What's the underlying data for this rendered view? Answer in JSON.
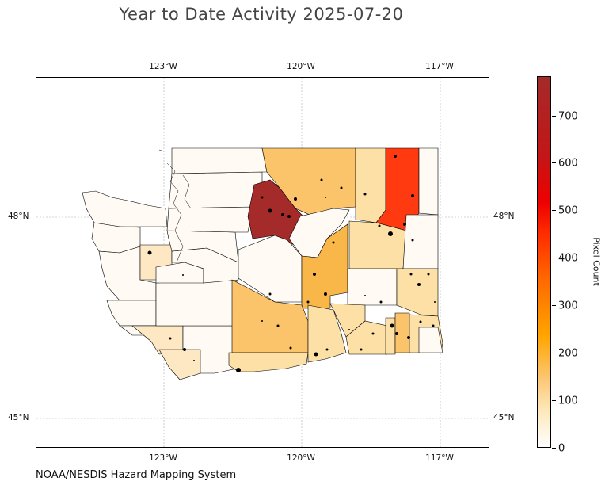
{
  "title": "Year to Date Activity 2025-07-20",
  "credit": "NOAA/NESDIS Hazard Mapping System",
  "map": {
    "lon_ticks": [
      "123°W",
      "120°W",
      "117°W"
    ],
    "lat_ticks": [
      "48°N",
      "45°N"
    ],
    "colors": {
      "lowest": "#fffaf3",
      "low": "#fde8c3",
      "light": "#fde0a6",
      "mid": "#fcc46a",
      "orange": "#f9b74a",
      "red_orange": "#ff3a10",
      "dark_red": "#a52a2a"
    }
  },
  "colorbar": {
    "title": "Pixel Count",
    "ticks": [
      "0",
      "100",
      "200",
      "300",
      "400",
      "500",
      "600",
      "700"
    ],
    "range": [
      0,
      780
    ]
  }
}
